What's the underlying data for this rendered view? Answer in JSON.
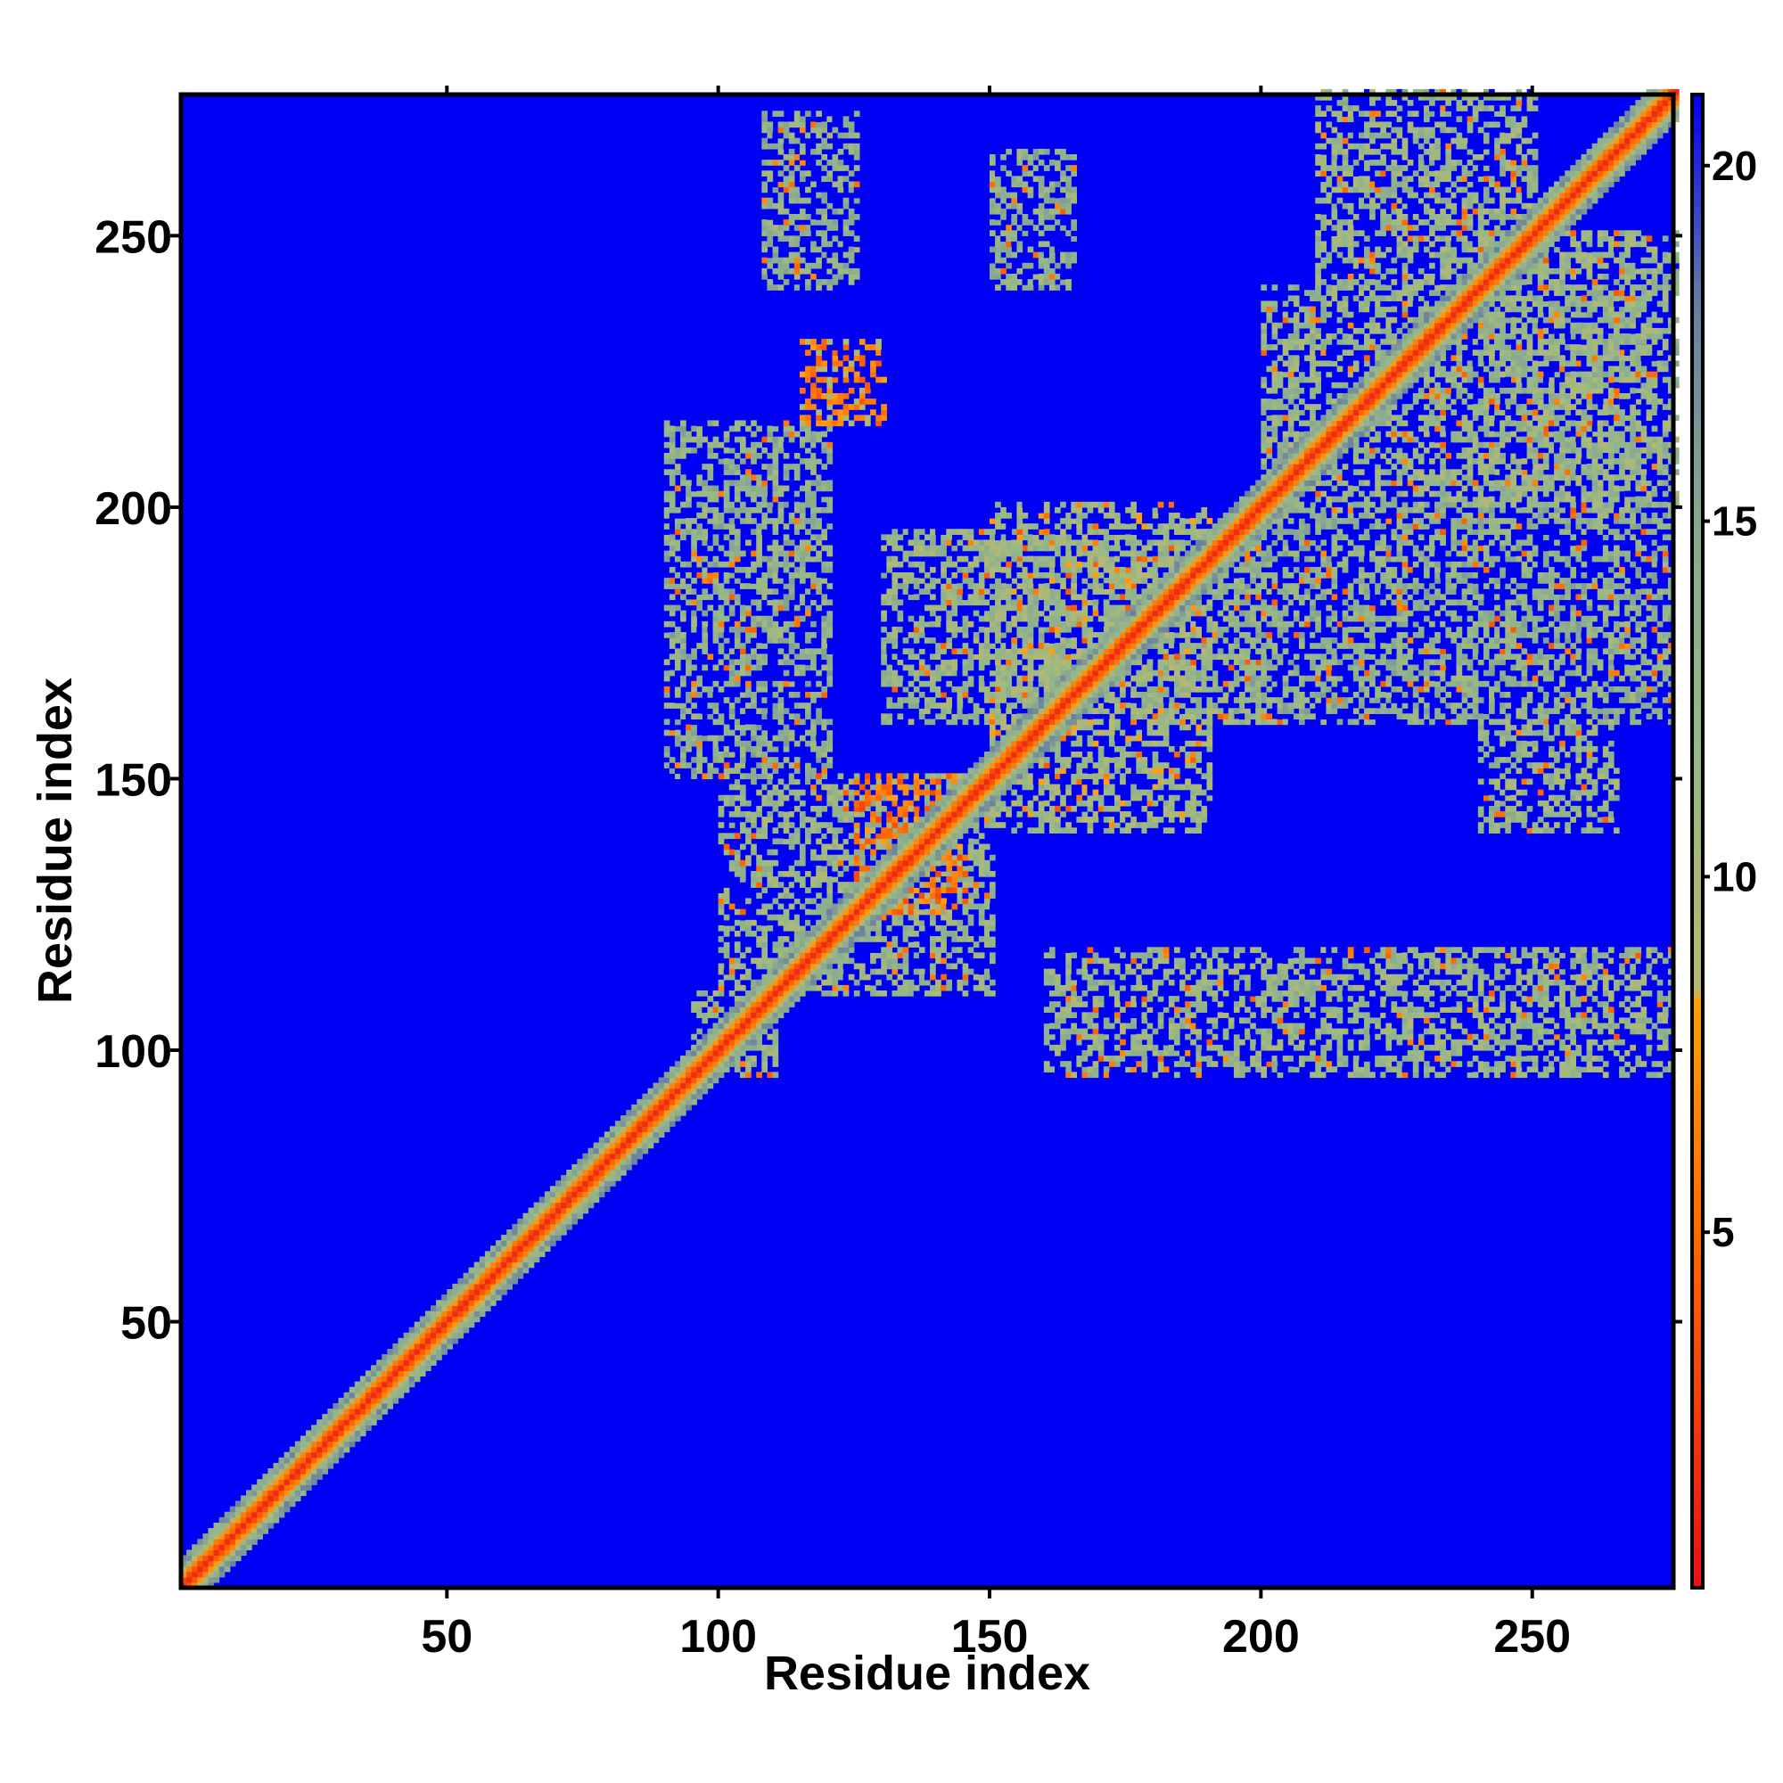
{
  "chart_data": {
    "type": "heatmap",
    "title": "",
    "xlabel": "Residue index",
    "ylabel": "Residue index",
    "xlim": [
      1,
      276
    ],
    "ylim": [
      1,
      276
    ],
    "x_ticks": [
      50,
      100,
      150,
      200,
      250
    ],
    "y_ticks": [
      50,
      100,
      150,
      200,
      250
    ],
    "colorbar": {
      "range": [
        0,
        21
      ],
      "ticks": [
        5,
        10,
        15,
        20
      ],
      "colors": [
        {
          "value": 0,
          "color": "#e8101a"
        },
        {
          "value": 5,
          "color": "#ff6a00"
        },
        {
          "value": 8.3,
          "color": "#ffa010"
        },
        {
          "value": 8.4,
          "color": "#b8b870"
        },
        {
          "value": 12,
          "color": "#95b888"
        },
        {
          "value": 15,
          "color": "#8aa890"
        },
        {
          "value": 18,
          "color": "#6a80a0"
        },
        {
          "value": 21,
          "color": "#0000f5"
        }
      ]
    },
    "background_value": 21,
    "matrix_description_note": "",
    "features": {
      "diagonal": {
        "from": 1,
        "to": 276,
        "core_value": 1.5
      },
      "contact_regions": [
        {
          "x": [
            95,
            110
          ],
          "y": [
            95,
            110
          ],
          "level": 12
        },
        {
          "x": [
            100,
            150
          ],
          "y": [
            110,
            150
          ],
          "level": 12
        },
        {
          "x": [
            125,
            145
          ],
          "y": [
            125,
            150
          ],
          "level": 6
        },
        {
          "x": [
            90,
            120
          ],
          "y": [
            150,
            215
          ],
          "level": 13
        },
        {
          "x": [
            108,
            125
          ],
          "y": [
            240,
            272
          ],
          "level": 13
        },
        {
          "x": [
            115,
            130
          ],
          "y": [
            215,
            230
          ],
          "level": 7
        },
        {
          "x": [
            130,
            200
          ],
          "y": [
            160,
            195
          ],
          "level": 12
        },
        {
          "x": [
            150,
            190
          ],
          "y": [
            140,
            200
          ],
          "level": 11
        },
        {
          "x": [
            150,
            165
          ],
          "y": [
            240,
            265
          ],
          "level": 13
        },
        {
          "x": [
            160,
            275
          ],
          "y": [
            95,
            118
          ],
          "level": 12
        },
        {
          "x": [
            195,
            275
          ],
          "y": [
            160,
            200
          ],
          "level": 13
        },
        {
          "x": [
            200,
            270
          ],
          "y": [
            200,
            240
          ],
          "level": 12
        },
        {
          "x": [
            210,
            250
          ],
          "y": [
            240,
            276
          ],
          "level": 12
        },
        {
          "x": [
            240,
            265
          ],
          "y": [
            140,
            160
          ],
          "level": 12
        },
        {
          "x": [
            240,
            276
          ],
          "y": [
            200,
            250
          ],
          "level": 12
        }
      ]
    }
  }
}
